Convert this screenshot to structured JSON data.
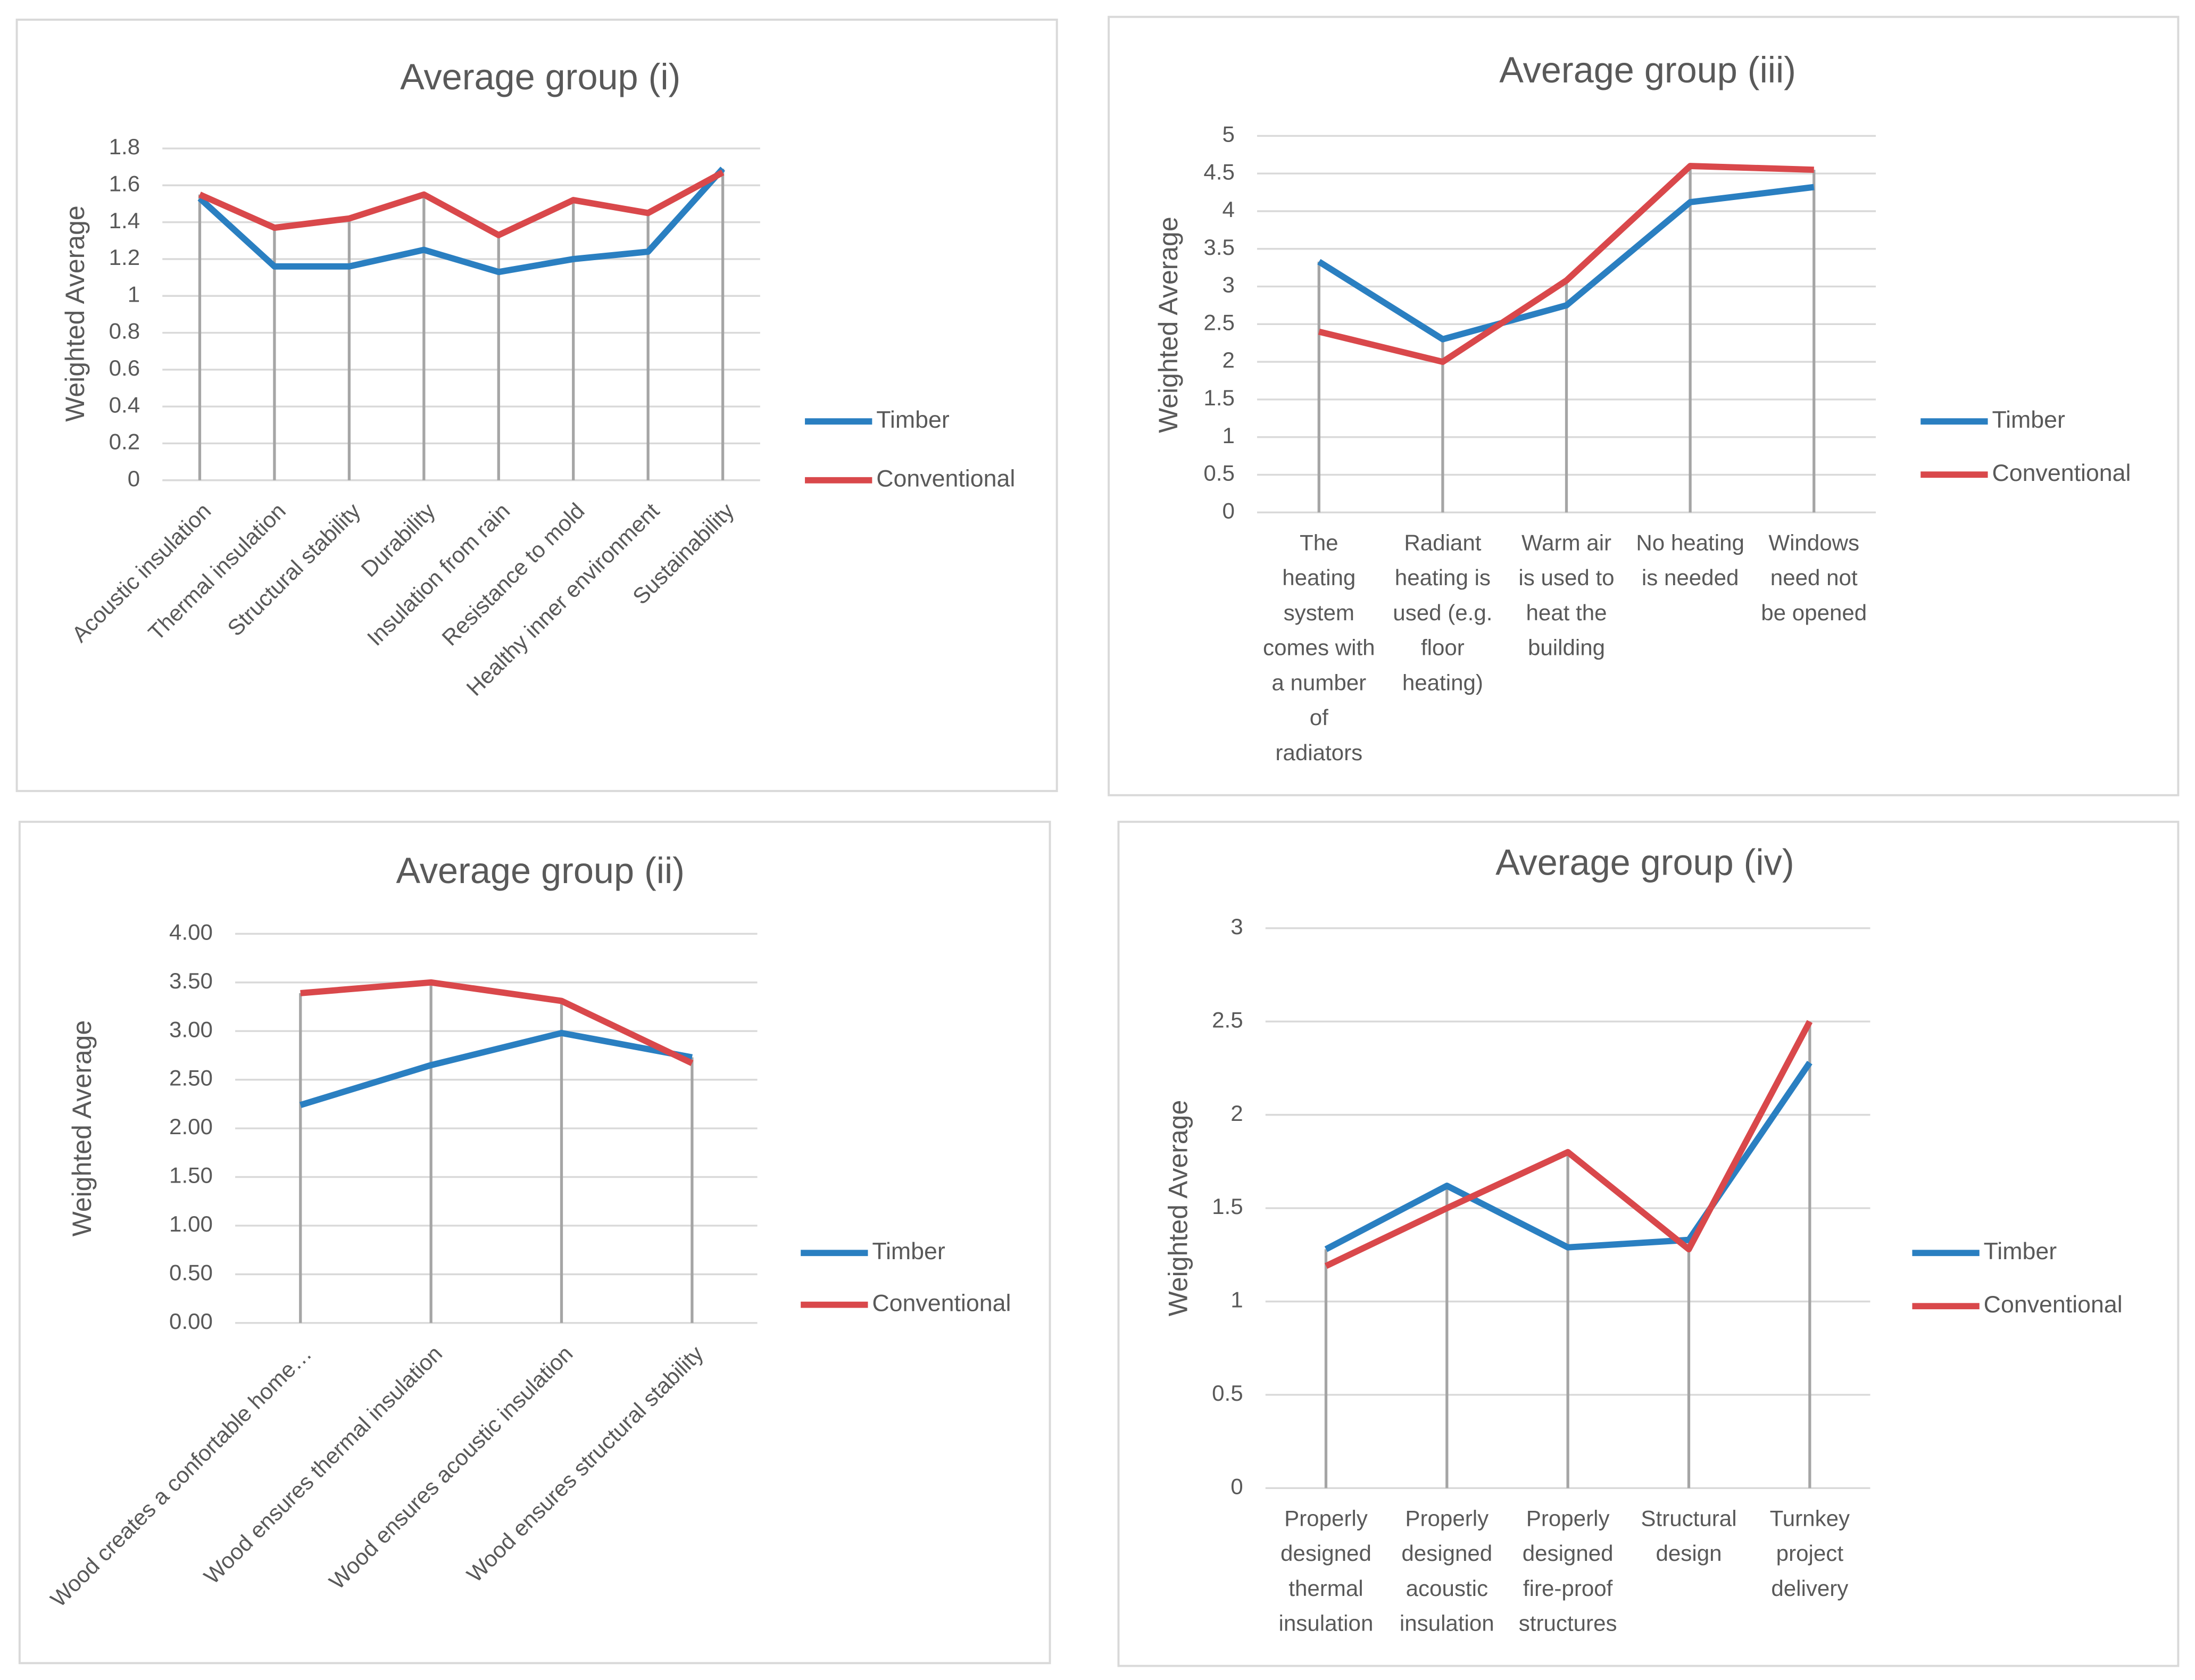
{
  "chart_data": [
    {
      "type": "line",
      "title": "Average group (i)",
      "ylabel": "Weighted Average",
      "categories": [
        "Acoustic insulation",
        "Thermal insulation",
        "Structural stability",
        "Durability",
        "Insulation from rain",
        "Resistance to mold",
        "Healthy inner environment",
        "Sustainability"
      ],
      "series": [
        {
          "name": "Timber",
          "color": "#2a7fc1",
          "values": [
            1.53,
            1.16,
            1.16,
            1.25,
            1.13,
            1.2,
            1.24,
            1.69
          ]
        },
        {
          "name": "Conventional",
          "color": "#d9484b",
          "values": [
            1.55,
            1.37,
            1.42,
            1.55,
            1.33,
            1.52,
            1.45,
            1.67
          ]
        }
      ],
      "ylim": [
        0,
        1.8
      ],
      "yticks": [
        0,
        0.2,
        0.4,
        0.6,
        0.8,
        1,
        1.2,
        1.4,
        1.6,
        1.8
      ],
      "grid": true,
      "drop_lines": true,
      "label_rotation": -45
    },
    {
      "type": "line",
      "title": "Average group (iii)",
      "ylabel": "Weighted Average",
      "categories": [
        "The heating system comes with a number of radiators",
        "Radiant heating is used (e.g. floor heating)",
        "Warm air is used to heat the building",
        "No heating is needed",
        "Windows need not be opened"
      ],
      "series": [
        {
          "name": "Timber",
          "color": "#2a7fc1",
          "values": [
            3.33,
            2.3,
            2.75,
            4.12,
            4.32
          ]
        },
        {
          "name": "Conventional",
          "color": "#d9484b",
          "values": [
            2.4,
            2.0,
            3.08,
            4.6,
            4.55
          ]
        }
      ],
      "ylim": [
        0,
        5
      ],
      "yticks": [
        0,
        0.5,
        1,
        1.5,
        2,
        2.5,
        3,
        3.5,
        4,
        4.5,
        5
      ],
      "grid": true,
      "drop_lines": true,
      "label_rotation": 0
    },
    {
      "type": "line",
      "title": "Average group (ii)",
      "ylabel": "Weighted Average",
      "categories": [
        "Wood creates a confortable home…",
        "Wood ensures thermal insulation",
        "Wood ensures acoustic insulation",
        "Wood ensures structural stability"
      ],
      "series": [
        {
          "name": "Timber",
          "color": "#2a7fc1",
          "values": [
            2.24,
            2.65,
            2.98,
            2.73
          ]
        },
        {
          "name": "Conventional",
          "color": "#d9484b",
          "values": [
            3.39,
            3.5,
            3.31,
            2.67
          ]
        }
      ],
      "ylim": [
        0,
        4
      ],
      "yticks": [
        {
          "value": 0,
          "label": "0.00"
        },
        {
          "value": 0.5,
          "label": "0.50"
        },
        {
          "value": 1,
          "label": "1.00"
        },
        {
          "value": 1.5,
          "label": "1.50"
        },
        {
          "value": 2,
          "label": "2.00"
        },
        {
          "value": 2.5,
          "label": "2.50"
        },
        {
          "value": 3,
          "label": "3.00"
        },
        {
          "value": 3.5,
          "label": "3.50"
        },
        {
          "value": 4,
          "label": "4.00"
        }
      ],
      "grid": true,
      "drop_lines": true,
      "label_rotation": -45
    },
    {
      "type": "line",
      "title": "Average group (iv)",
      "ylabel": "Weighted Average",
      "categories": [
        "Properly designed thermal insulation",
        "Properly designed acoustic insulation",
        "Properly designed fire-proof structures",
        "Structural design",
        "Turnkey project delivery"
      ],
      "series": [
        {
          "name": "Timber",
          "color": "#2a7fc1",
          "values": [
            1.28,
            1.62,
            1.29,
            1.33,
            2.28
          ]
        },
        {
          "name": "Conventional",
          "color": "#d9484b",
          "values": [
            1.19,
            1.5,
            1.8,
            1.28,
            2.5
          ]
        }
      ],
      "ylim": [
        0,
        3
      ],
      "yticks": [
        0,
        0.5,
        1,
        1.5,
        2,
        2.5,
        3
      ],
      "grid": true,
      "drop_lines": true,
      "label_rotation": 0
    }
  ]
}
